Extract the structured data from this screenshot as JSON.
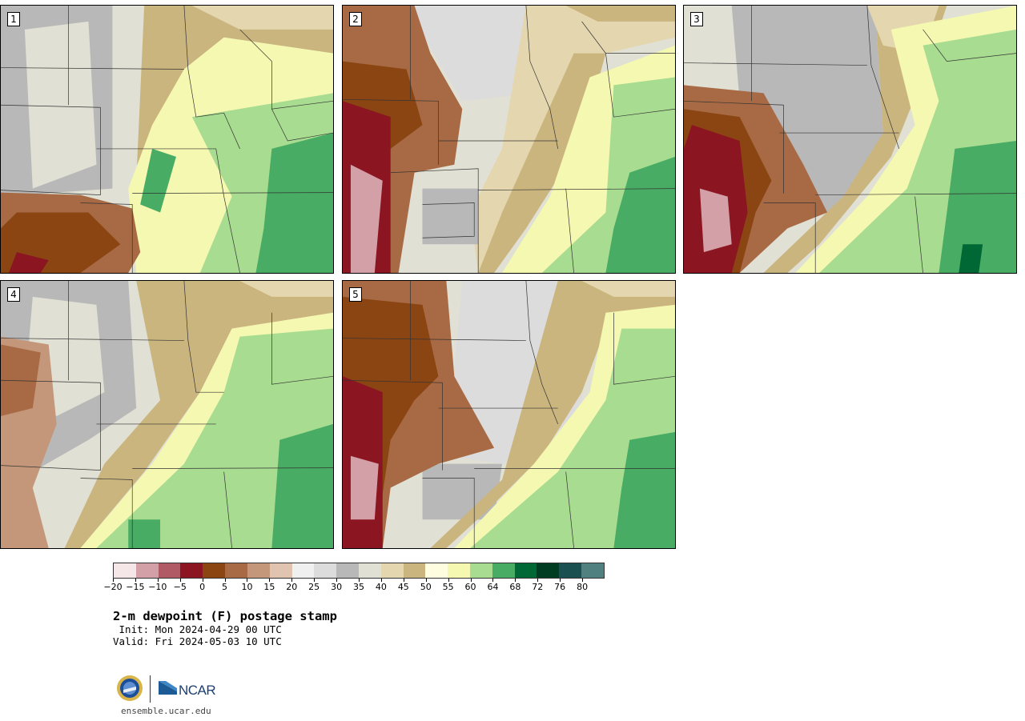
{
  "figure": {
    "title": "2-m dewpoint (F) postage stamp",
    "init": " Init: Mon 2024-04-29 00 UTC",
    "valid": "Valid: Fri 2024-05-03 10 UTC",
    "website": "ensemble.ucar.edu",
    "logos": [
      "NSF",
      "NCAR"
    ]
  },
  "panels": [
    {
      "label": "1"
    },
    {
      "label": "2"
    },
    {
      "label": "3"
    },
    {
      "label": "4"
    },
    {
      "label": "5"
    }
  ],
  "colorbar": {
    "tick_labels": [
      "−20",
      "−15",
      "−10",
      "−5",
      "0",
      "5",
      "10",
      "15",
      "20",
      "25",
      "30",
      "35",
      "40",
      "45",
      "50",
      "55",
      "60",
      "64",
      "68",
      "72",
      "76",
      "80"
    ],
    "colors": [
      "#f5e6e8",
      "#d4a0a8",
      "#b05a66",
      "#8b1520",
      "#8b4513",
      "#a86a44",
      "#c4977a",
      "#e0c4b0",
      "#f0f0f0",
      "#dcdcdc",
      "#b8b8b8",
      "#e0e0d4",
      "#e4d6ae",
      "#cbb57e",
      "#fffde0",
      "#f5f8b0",
      "#a8dc90",
      "#48ac64",
      "#006834",
      "#003c22",
      "#1a5050",
      "#508080"
    ]
  },
  "map_colors": {
    "gray_light": "#e0e0d4",
    "gray_mid": "#b8b8b8",
    "tan_light": "#e4d6ae",
    "tan": "#cbb57e",
    "cream": "#fffde0",
    "yellow": "#f5f8b0",
    "green_light": "#a8dc90",
    "green": "#48ac64",
    "green_dark": "#006834",
    "brown": "#a86a44",
    "brown_dark": "#8b4513",
    "red_dark": "#8b1520",
    "pink": "#d4a0a8"
  }
}
